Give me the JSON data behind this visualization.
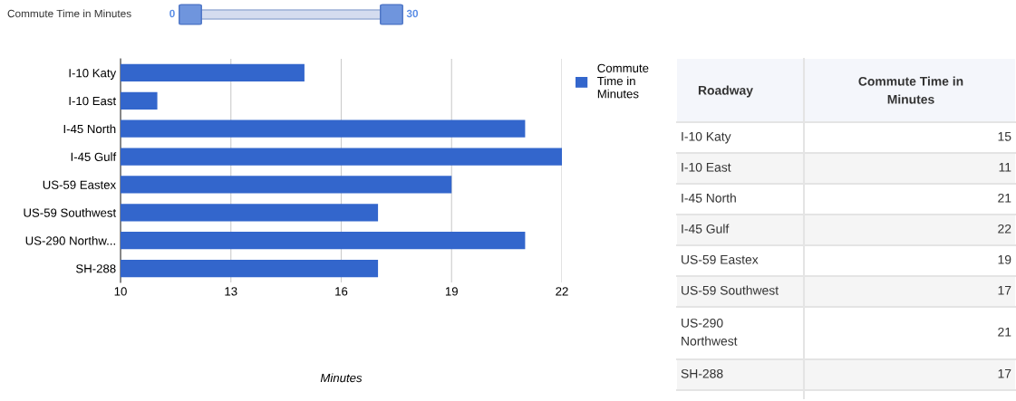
{
  "chart_data": [
    {
      "type": "bar",
      "orientation": "horizontal",
      "categories": [
        "I-10 Katy",
        "I-10 East",
        "I-45 North",
        "I-45 Gulf",
        "US-59 Eastex",
        "US-59 Southwest",
        "US-290 Northw...",
        "SH-288"
      ],
      "series": [
        {
          "name": "Commute Time in Minutes",
          "color": "#3366cc",
          "values": [
            15,
            11,
            21,
            22,
            19,
            17,
            21,
            17
          ]
        }
      ],
      "xlabel": "Minutes",
      "xlim": [
        10,
        22
      ],
      "xticks": [
        10,
        13,
        16,
        19,
        22
      ],
      "grid": "x",
      "legend": "right",
      "annotations": [
        "Commute Time in Minutes",
        "0",
        "30"
      ]
    },
    {
      "type": "other",
      "categories": [
        "I-10 Katy",
        "I-10 East",
        "I-45 North",
        "I-45 Gulf",
        "US-59 Eastex",
        "US-59 Southwest",
        "US-290 Northwest",
        "SH-288"
      ],
      "series": [
        {
          "name": "Commute Time in Minutes",
          "values": [
            15,
            11,
            21,
            22,
            19,
            17,
            21,
            17
          ]
        }
      ],
      "data_labels": true,
      "annotations": [
        "Roadway"
      ]
    }
  ]
}
